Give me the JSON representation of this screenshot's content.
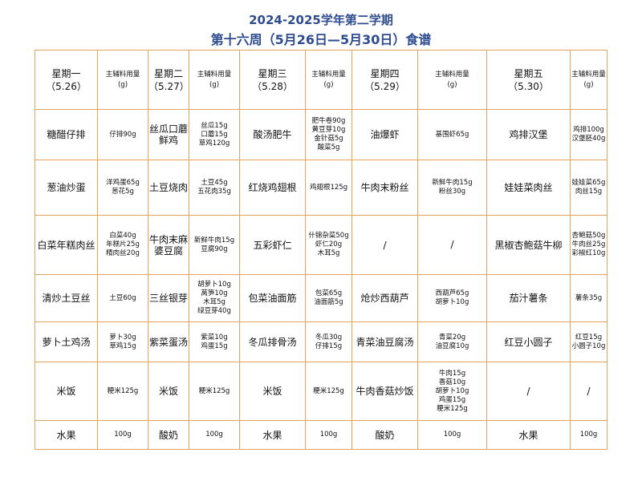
{
  "title": {
    "line1": "2024-2025学年第二学期",
    "line2": "第十六周（5月26日—5月30日）食谱"
  },
  "header": {
    "days": [
      {
        "name": "星期一",
        "date": "（5.26）"
      },
      {
        "name": "星期二",
        "date": "（5.27）"
      },
      {
        "name": "星期三",
        "date": "（5.28）"
      },
      {
        "name": "星期四",
        "date": "（5.29）"
      },
      {
        "name": "星期五",
        "date": "（5.30）"
      }
    ],
    "amount_label": "主辅料用量",
    "amount_unit": "(g)"
  },
  "rows": [
    [
      {
        "dish": "糖醋仔排",
        "amounts": [
          "仔排90g"
        ]
      },
      {
        "dish": "丝瓜口蘑鲜鸡",
        "amounts": [
          "丝瓜15g",
          "口蘑15g",
          "草鸡120g"
        ]
      },
      {
        "dish": "酸汤肥牛",
        "amounts": [
          "肥牛卷90g",
          "黄豆芽10g",
          "金针菇5g",
          "酸菜5g"
        ]
      },
      {
        "dish": "油爆虾",
        "amounts": [
          "基围虾65g"
        ]
      },
      {
        "dish": "鸡排汉堡",
        "amounts": [
          "鸡排100g",
          "汉堡胚40g"
        ]
      }
    ],
    [
      {
        "dish": "葱油炒蛋",
        "amounts": [
          "洋鸡蛋65g",
          "葱花5g"
        ]
      },
      {
        "dish": "土豆烧肉",
        "amounts": [
          "土豆45g",
          "五花肉35g"
        ]
      },
      {
        "dish": "红烧鸡翅根",
        "amounts": [
          "鸡翅根125g"
        ]
      },
      {
        "dish": "牛肉末粉丝",
        "amounts": [
          "新鲜牛肉15g",
          "粉丝30g"
        ]
      },
      {
        "dish": "娃娃菜肉丝",
        "amounts": [
          "娃娃菜65g",
          "肉丝15g"
        ]
      }
    ],
    [
      {
        "dish": "白菜年糕肉丝",
        "amounts": [
          "白菜40g",
          "年糕片25g",
          "精肉丝20g"
        ]
      },
      {
        "dish": "牛肉末麻婆豆腐",
        "amounts": [
          "新鲜牛肉15g",
          "豆腐90g"
        ]
      },
      {
        "dish": "五彩虾仁",
        "amounts": [
          "什锦杂菜50g",
          "虾仁20g",
          "木耳5g"
        ]
      },
      {
        "dish": "/",
        "amounts": [
          "/"
        ]
      },
      {
        "dish": "黑椒杏鲍菇牛柳",
        "amounts": [
          "杏鲍菇50g",
          "牛肉丝25g",
          "彩椒红10g"
        ]
      }
    ],
    [
      {
        "dish": "清炒土豆丝",
        "amounts": [
          "土豆60g"
        ]
      },
      {
        "dish": "三丝银芽",
        "amounts": [
          "胡萝卜10g",
          "莴笋10g",
          "木耳5g",
          "绿豆芽40g"
        ]
      },
      {
        "dish": "包菜油面筋",
        "amounts": [
          "包菜65g",
          "油面筋5g"
        ]
      },
      {
        "dish": "炝炒西葫芦",
        "amounts": [
          "西葫芦65g",
          "胡萝卜10g"
        ]
      },
      {
        "dish": "茄汁薯条",
        "amounts": [
          "薯条35g"
        ]
      }
    ],
    [
      {
        "dish": "萝卜土鸡汤",
        "amounts": [
          "萝卜30g",
          "草鸡15g"
        ]
      },
      {
        "dish": "紫菜蛋汤",
        "amounts": [
          "紫菜10g",
          "鸡蛋15g"
        ]
      },
      {
        "dish": "冬瓜排骨汤",
        "amounts": [
          "冬瓜30g",
          "仔排15g"
        ]
      },
      {
        "dish": "青菜油豆腐汤",
        "amounts": [
          "青菜20g",
          "油豆腐10g"
        ]
      },
      {
        "dish": "红豆小圆子",
        "amounts": [
          "红豆15g",
          "小圆子10g"
        ]
      }
    ],
    [
      {
        "dish": "米饭",
        "amounts": [
          "粳米125g"
        ]
      },
      {
        "dish": "米饭",
        "amounts": [
          "粳米125g"
        ]
      },
      {
        "dish": "米饭",
        "amounts": [
          "粳米125g"
        ]
      },
      {
        "dish": "牛肉香菇炒饭",
        "amounts": [
          "牛肉15g",
          "香菇10g",
          "胡萝卜10g",
          "鸡蛋15g",
          "粳米125g"
        ]
      },
      {
        "dish": "/",
        "amounts": [
          "/"
        ]
      }
    ],
    [
      {
        "dish": "水果",
        "amounts": [
          "100g"
        ]
      },
      {
        "dish": "酸奶",
        "amounts": [
          "100g"
        ]
      },
      {
        "dish": "水果",
        "amounts": [
          "100g"
        ]
      },
      {
        "dish": "酸奶",
        "amounts": [
          "100g"
        ]
      },
      {
        "dish": "水果",
        "amounts": [
          "100g"
        ]
      }
    ]
  ]
}
